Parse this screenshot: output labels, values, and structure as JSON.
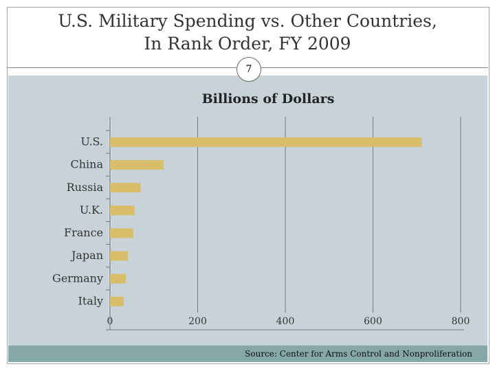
{
  "slide": {
    "title_line1": "U.S. Military Spending vs. Other Countries,",
    "title_line2": "In Rank Order, FY 2009",
    "page_number": "7",
    "source": "Source: Center for Arms Control and Nonproliferation"
  },
  "colors": {
    "bar": "#d8bd6a",
    "background": "#c7d2d9",
    "footer": "#86a7a8"
  },
  "chart_data": {
    "type": "bar",
    "orientation": "horizontal",
    "title": "Billions of Dollars",
    "categories": [
      "U.S.",
      "China",
      "Russia",
      "U.K.",
      "France",
      "Japan",
      "Germany",
      "Italy"
    ],
    "values": [
      711,
      122,
      70,
      56,
      53,
      41,
      36,
      31
    ],
    "xlim": [
      0,
      800
    ],
    "xticks": [
      "0",
      "200",
      "400",
      "600",
      "800"
    ],
    "grid": true
  }
}
